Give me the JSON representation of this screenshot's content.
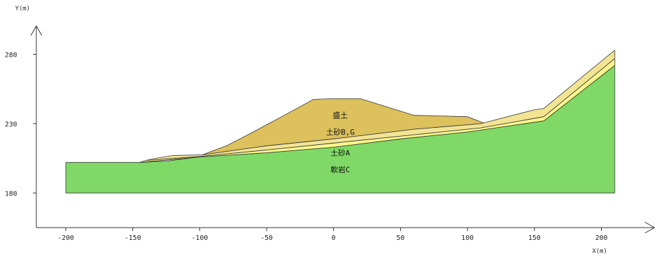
{
  "chart_data": {
    "type": "area",
    "x_label": "X(m)",
    "y_label": "Y(m)",
    "x_ticks": [
      "-200",
      "-150",
      "-100",
      "-50",
      "0",
      "50",
      "100",
      "150",
      "200"
    ],
    "y_ticks": [
      "180",
      "230",
      "280"
    ],
    "x_tick_values": [
      -200,
      -150,
      -100,
      -50,
      0,
      50,
      100,
      150,
      200
    ],
    "y_tick_values": [
      180,
      230,
      280
    ],
    "xlim": [
      -222,
      232
    ],
    "ylim": [
      155,
      297
    ],
    "grid": false,
    "colors": {
      "rock_c": "#80d966",
      "soil_a": "#fcf68a",
      "soil_bg": "#f3e493",
      "fill": "#dcc15c",
      "outline": "#333333",
      "axis": "#333333"
    },
    "layers": [
      {
        "name": "軟岩C",
        "color_key": "rock_c",
        "label_at": [
          5,
          196.5
        ],
        "polygon": [
          [
            -200,
            180
          ],
          [
            210,
            180
          ],
          [
            210,
            272
          ],
          [
            157,
            232
          ],
          [
            100,
            224
          ],
          [
            50,
            219
          ],
          [
            0,
            213
          ],
          [
            -50,
            209
          ],
          [
            -100,
            206
          ],
          [
            -125,
            203
          ],
          [
            -145,
            202
          ],
          [
            -200,
            202
          ]
        ]
      },
      {
        "name": "土砂A",
        "color_key": "soil_a",
        "label_at": [
          5,
          208.5
        ],
        "polygon": [
          [
            -145,
            202
          ],
          [
            -100,
            206
          ],
          [
            -50,
            209
          ],
          [
            0,
            213
          ],
          [
            50,
            219
          ],
          [
            100,
            224
          ],
          [
            157,
            232
          ],
          [
            210,
            272
          ],
          [
            210,
            277
          ],
          [
            157,
            235
          ],
          [
            110,
            227
          ],
          [
            60,
            222
          ],
          [
            0,
            216
          ],
          [
            -50,
            211
          ],
          [
            -98,
            206.5
          ],
          [
            -120,
            205
          ],
          [
            -140,
            203.5
          ]
        ]
      },
      {
        "name": "土砂B,G",
        "color_key": "soil_bg",
        "label_at": [
          5,
          223.5
        ],
        "polygon": [
          [
            -140,
            203.5
          ],
          [
            -120,
            205
          ],
          [
            -98,
            206.5
          ],
          [
            -50,
            211
          ],
          [
            0,
            216
          ],
          [
            60,
            222
          ],
          [
            110,
            227
          ],
          [
            157,
            235
          ],
          [
            210,
            277
          ],
          [
            210,
            283
          ],
          [
            157,
            241
          ],
          [
            150,
            240
          ],
          [
            110,
            230
          ],
          [
            60,
            226
          ],
          [
            0,
            219
          ],
          [
            -50,
            214
          ],
          [
            -80,
            210
          ],
          [
            -98,
            207.5
          ],
          [
            -120,
            207
          ],
          [
            -133,
            205
          ]
        ]
      },
      {
        "name": "盛土",
        "color_key": "fill",
        "label_at": [
          5,
          235.5
        ],
        "polygon": [
          [
            -98,
            207.5
          ],
          [
            -80,
            210
          ],
          [
            -50,
            214
          ],
          [
            0,
            219
          ],
          [
            60,
            226
          ],
          [
            110,
            230
          ],
          [
            112,
            230.5
          ],
          [
            100,
            235
          ],
          [
            60,
            236
          ],
          [
            40,
            242
          ],
          [
            20,
            248
          ],
          [
            0,
            248
          ],
          [
            -15,
            247.5
          ],
          [
            -35,
            237
          ],
          [
            -60,
            224
          ],
          [
            -80,
            214
          ]
        ]
      }
    ]
  }
}
